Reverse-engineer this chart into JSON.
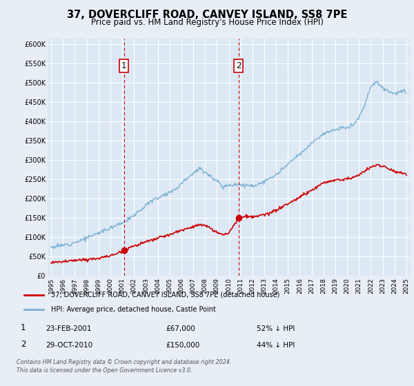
{
  "title": "37, DOVERCLIFF ROAD, CANVEY ISLAND, SS8 7PE",
  "subtitle": "Price paid vs. HM Land Registry's House Price Index (HPI)",
  "title_fontsize": 10.5,
  "subtitle_fontsize": 8.5,
  "bg_color": "#e8eef6",
  "plot_bg_color": "#dce8f4",
  "grid_color": "#ffffff",
  "ylabel_ticks": [
    "£0",
    "£50K",
    "£100K",
    "£150K",
    "£200K",
    "£250K",
    "£300K",
    "£350K",
    "£400K",
    "£450K",
    "£500K",
    "£550K",
    "£600K"
  ],
  "ytick_values": [
    0,
    50000,
    100000,
    150000,
    200000,
    250000,
    300000,
    350000,
    400000,
    450000,
    500000,
    550000,
    600000
  ],
  "ylim": [
    0,
    615000
  ],
  "xlim_start": 1994.7,
  "xlim_end": 2025.3,
  "xtick_years": [
    1995,
    1996,
    1997,
    1998,
    1999,
    2000,
    2001,
    2002,
    2003,
    2004,
    2005,
    2006,
    2007,
    2008,
    2009,
    2010,
    2011,
    2012,
    2013,
    2014,
    2015,
    2016,
    2017,
    2018,
    2019,
    2020,
    2021,
    2022,
    2023,
    2024,
    2025
  ],
  "transaction1_x": 2001.15,
  "transaction1_y": 67000,
  "transaction2_x": 2010.83,
  "transaction2_y": 150000,
  "vline_color": "#cc0000",
  "red_line_color": "#cc0000",
  "blue_line_color": "#7ab0d4",
  "legend_label_red": "37, DOVERCLIFF ROAD, CANVEY ISLAND, SS8 7PE (detached house)",
  "legend_label_blue": "HPI: Average price, detached house, Castle Point",
  "footer_line1": "Contains HM Land Registry data © Crown copyright and database right 2024.",
  "footer_line2": "This data is licensed under the Open Government Licence v3.0.",
  "table_row1": [
    "1",
    "23-FEB-2001",
    "£67,000",
    "52% ↓ HPI"
  ],
  "table_row2": [
    "2",
    "29-OCT-2010",
    "£150,000",
    "44% ↓ HPI"
  ]
}
